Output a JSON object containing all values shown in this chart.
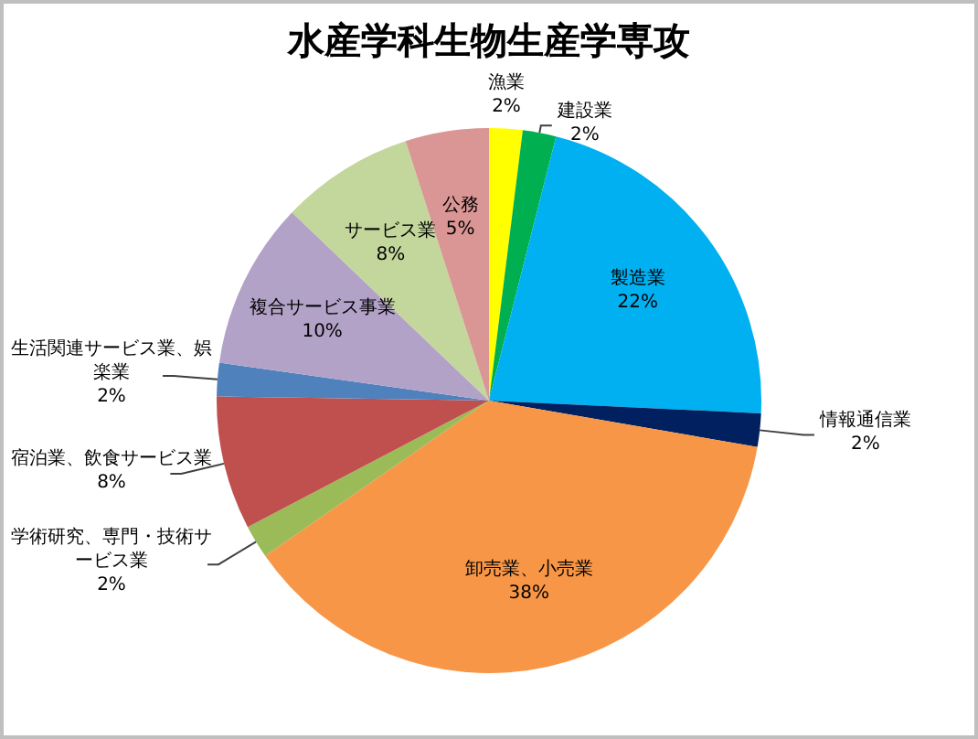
{
  "chart_data": {
    "type": "pie",
    "title": "水産学科生物生産学専攻",
    "categories": [
      "漁業",
      "建設業",
      "製造業",
      "情報通信業",
      "卸売業、小売業",
      "学術研究、専門・技術サービス業",
      "宿泊業、飲食サービス業",
      "生活関連サービス業、娯楽業",
      "複合サービス事業",
      "サービス業",
      "公務"
    ],
    "values": [
      2,
      2,
      22,
      2,
      38,
      2,
      8,
      2,
      10,
      8,
      5
    ],
    "value_labels": [
      "2%",
      "2%",
      "22%",
      "2%",
      "38%",
      "2%",
      "8%",
      "2%",
      "10%",
      "8%",
      "5%"
    ],
    "colors": [
      "#ffff00",
      "#00b050",
      "#00b0f0",
      "#002060",
      "#f79646",
      "#9bbb59",
      "#c0504d",
      "#4f81bd",
      "#b3a2c7",
      "#c3d69b",
      "#d99694"
    ],
    "legend": false
  }
}
